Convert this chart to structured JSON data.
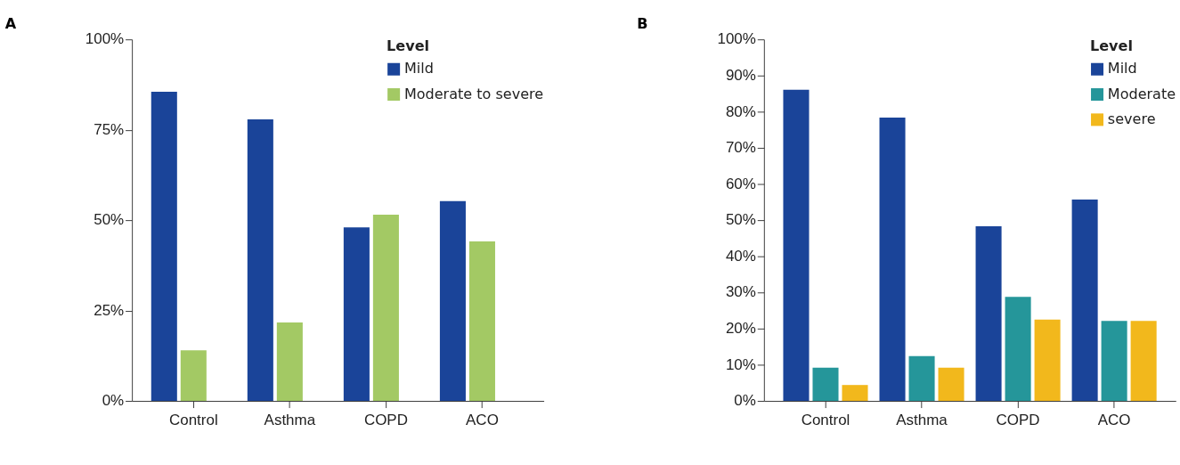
{
  "chart_data": [
    {
      "type": "bar",
      "title": "A",
      "categories": [
        "Control",
        "Asthma",
        "COPD",
        "ACO"
      ],
      "legend_title": "Level",
      "legend": "top right",
      "grid": false,
      "series": [
        {
          "name": "Mild",
          "color": "#1a4499",
          "values": [
            85.5,
            77.9,
            48.0,
            55.3
          ]
        },
        {
          "name": "Moderate to severe",
          "color": "#a3c964",
          "values": [
            14.0,
            21.7,
            51.5,
            44.1
          ]
        }
      ],
      "ylim": [
        0,
        100
      ],
      "yticks": [
        {
          "value": 0,
          "label": "0%"
        },
        {
          "value": 25,
          "label": "25%"
        },
        {
          "value": 50,
          "label": "50%"
        },
        {
          "value": 75,
          "label": "75%"
        },
        {
          "value": 100,
          "label": "100%"
        }
      ]
    },
    {
      "type": "bar",
      "title": "B",
      "categories": [
        "Control",
        "Asthma",
        "COPD",
        "ACO"
      ],
      "legend_title": "Level",
      "legend": "top right",
      "grid": false,
      "series": [
        {
          "name": "Mild",
          "color": "#1a4499",
          "values": [
            86.1,
            78.4,
            48.3,
            55.7
          ]
        },
        {
          "name": "Moderate",
          "color": "#25969a",
          "values": [
            9.2,
            12.4,
            28.8,
            22.1
          ]
        },
        {
          "name": "severe",
          "color": "#f2b81c",
          "values": [
            4.4,
            9.2,
            22.5,
            22.1
          ]
        }
      ],
      "ylim": [
        0,
        100
      ],
      "yticks": [
        {
          "value": 0,
          "label": "0%"
        },
        {
          "value": 10,
          "label": "10%"
        },
        {
          "value": 20,
          "label": "20%"
        },
        {
          "value": 30,
          "label": "30%"
        },
        {
          "value": 40,
          "label": "40%"
        },
        {
          "value": 50,
          "label": "50%"
        },
        {
          "value": 60,
          "label": "60%"
        },
        {
          "value": 70,
          "label": "70%"
        },
        {
          "value": 80,
          "label": "80%"
        },
        {
          "value": 90,
          "label": "90%"
        },
        {
          "value": 100,
          "label": "100%"
        }
      ]
    }
  ]
}
